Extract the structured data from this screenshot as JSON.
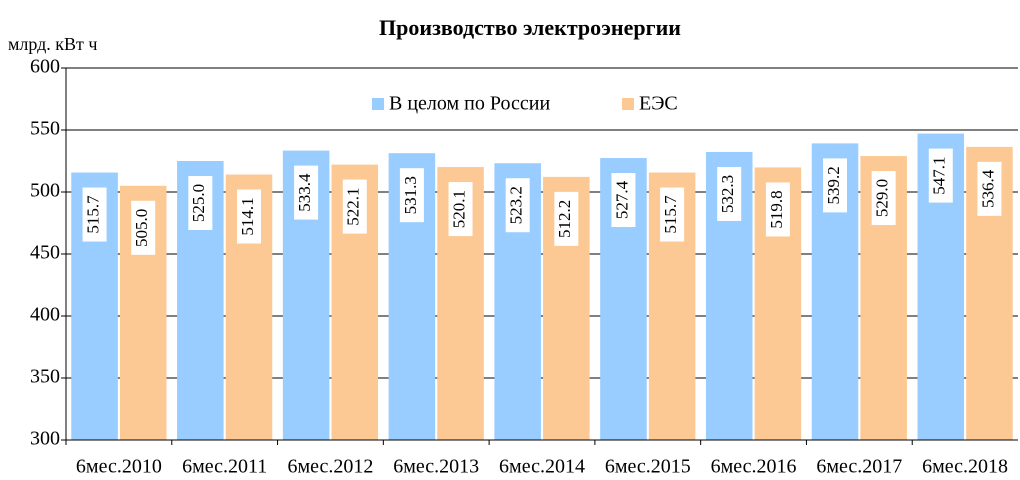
{
  "chart_data": {
    "type": "bar",
    "title": "Производство электроэнергии",
    "y_axis_label": "млрд. кВт ч",
    "categories": [
      "6мес.2010",
      "6мес.2011",
      "6мес.2012",
      "6мес.2013",
      "6мес.2014",
      "6мес.2015",
      "6мес.2016",
      "6мес.2017",
      "6мес.2018"
    ],
    "series": [
      {
        "name": "В целом по России",
        "color": "#99ccff",
        "values": [
          515.7,
          525.0,
          533.4,
          531.3,
          523.2,
          527.4,
          532.3,
          539.2,
          547.1
        ],
        "value_labels": [
          "515.7",
          "525.0",
          "533.4",
          "531.3",
          "523.2",
          "527.4",
          "532.3",
          "539.2",
          "547.1"
        ]
      },
      {
        "name": "ЕЭС",
        "color": "#fcc994",
        "values": [
          505.0,
          514.1,
          522.1,
          520.1,
          512.2,
          515.7,
          519.8,
          529.0,
          536.4
        ],
        "value_labels": [
          "505.0",
          "514.1",
          "522.1",
          "520.1",
          "512.2",
          "515.7",
          "519.8",
          "529.0",
          "536.4"
        ]
      }
    ],
    "ylim": [
      300,
      600
    ],
    "yticks": [
      300,
      350,
      400,
      450,
      500,
      550,
      600
    ],
    "grid": true,
    "legend": "top"
  }
}
